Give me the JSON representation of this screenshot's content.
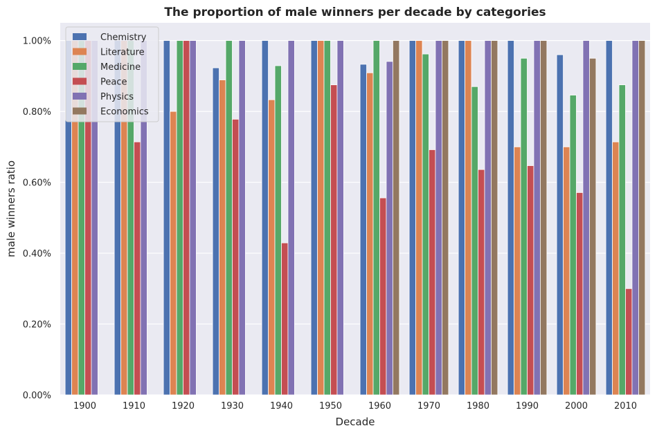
{
  "chart_data": {
    "type": "bar",
    "title": "The proportion of male winners per decade by categories",
    "xlabel": "Decade",
    "ylabel": "male winners ratio",
    "ylim": [
      0,
      1.05
    ],
    "yticks": [
      0,
      0.2,
      0.4,
      0.6,
      0.8,
      1.0
    ],
    "ytick_labels": [
      "0.00%",
      "0.20%",
      "0.40%",
      "0.60%",
      "0.80%",
      "1.00%"
    ],
    "categories": [
      "1900",
      "1910",
      "1920",
      "1930",
      "1940",
      "1950",
      "1960",
      "1970",
      "1980",
      "1990",
      "2000",
      "2010"
    ],
    "grid": true,
    "legend_position": "top-left",
    "series": [
      {
        "name": "Chemistry",
        "color": "#4c72b0",
        "values": [
          1.0,
          1.0,
          1.0,
          0.923,
          1.0,
          1.0,
          0.933,
          1.0,
          1.0,
          1.0,
          0.96,
          1.0
        ]
      },
      {
        "name": "Literature",
        "color": "#dd8452",
        "values": [
          1.0,
          1.0,
          0.8,
          0.889,
          0.833,
          1.0,
          0.909,
          1.0,
          1.0,
          0.7,
          0.7,
          0.714
        ]
      },
      {
        "name": "Medicine",
        "color": "#55a868",
        "values": [
          1.0,
          1.0,
          1.0,
          1.0,
          0.929,
          1.0,
          1.0,
          0.962,
          0.87,
          0.95,
          0.846,
          0.875
        ]
      },
      {
        "name": "Peace",
        "color": "#c44e52",
        "values": [
          1.0,
          0.714,
          1.0,
          0.778,
          0.429,
          0.875,
          0.556,
          0.692,
          0.636,
          0.647,
          0.571,
          0.3
        ]
      },
      {
        "name": "Physics",
        "color": "#8172b3",
        "values": [
          1.0,
          1.0,
          1.0,
          1.0,
          1.0,
          1.0,
          0.941,
          1.0,
          1.0,
          1.0,
          1.0,
          1.0
        ]
      },
      {
        "name": "Economics",
        "color": "#937860",
        "values": [
          null,
          null,
          null,
          null,
          null,
          null,
          1.0,
          1.0,
          1.0,
          1.0,
          0.95,
          1.0
        ]
      }
    ]
  }
}
